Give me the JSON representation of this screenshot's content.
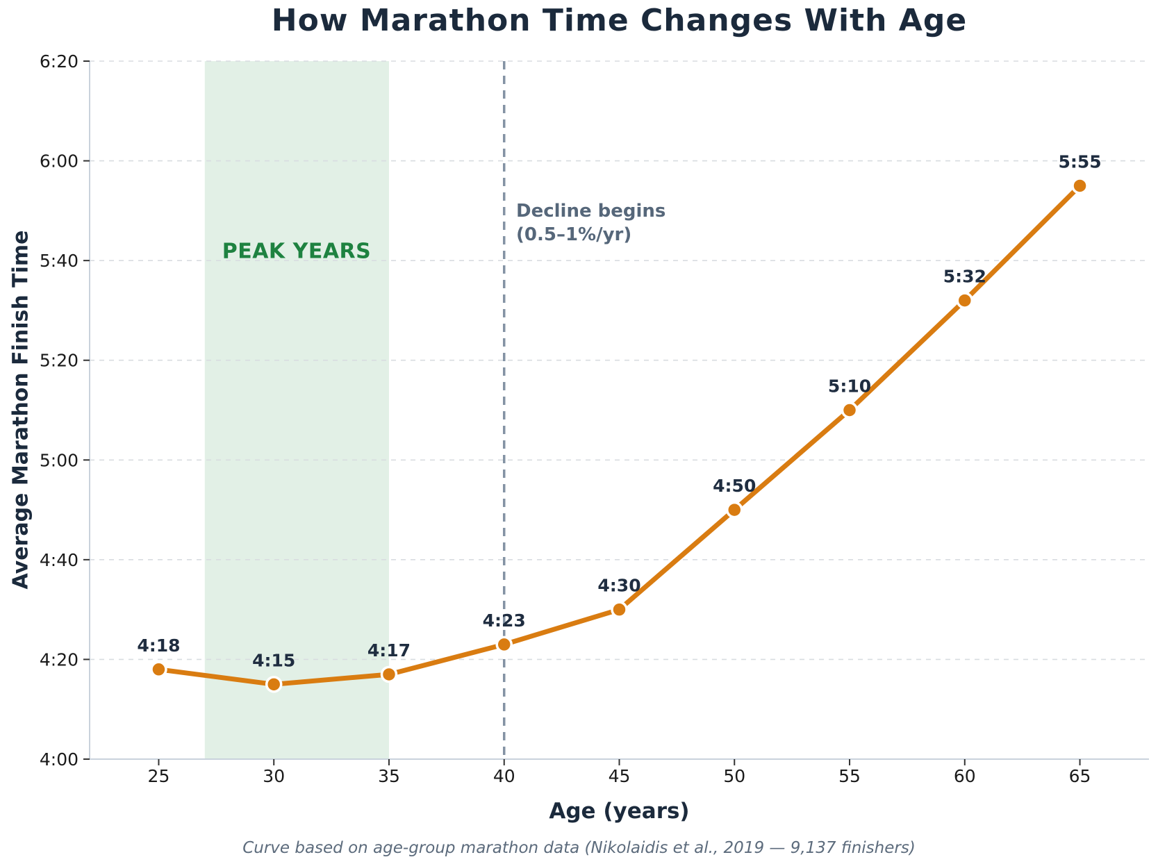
{
  "chart_data": {
    "type": "line",
    "title": "How Marathon Time Changes With Age",
    "xlabel": "Age (years)",
    "ylabel": "Average Marathon Finish Time",
    "caption": "Curve based on age-group marathon data (Nikolaidis et al., 2019 — 9,137 finishers)",
    "x": [
      25,
      30,
      35,
      40,
      45,
      50,
      55,
      60,
      65
    ],
    "point_labels": [
      "4:18",
      "4:15",
      "4:17",
      "4:23",
      "4:30",
      "4:50",
      "5:10",
      "5:32",
      "5:55"
    ],
    "y_minutes": [
      258,
      255,
      257,
      263,
      270,
      290,
      310,
      332,
      355
    ],
    "xlim": [
      22,
      68
    ],
    "ylim_minutes": [
      240,
      380
    ],
    "xticks": [
      25,
      30,
      35,
      40,
      45,
      50,
      55,
      60,
      65
    ],
    "yticks": [
      {
        "minutes": 240,
        "label": "4:00"
      },
      {
        "minutes": 260,
        "label": "4:20"
      },
      {
        "minutes": 280,
        "label": "4:40"
      },
      {
        "minutes": 300,
        "label": "5:00"
      },
      {
        "minutes": 320,
        "label": "5:20"
      },
      {
        "minutes": 340,
        "label": "5:40"
      },
      {
        "minutes": 360,
        "label": "6:00"
      },
      {
        "minutes": 380,
        "label": "6:20"
      }
    ],
    "grid": "horizontal-dashed",
    "legend": "none",
    "band": {
      "x_from": 27,
      "x_to": 35,
      "label": "PEAK YEARS"
    },
    "vline": {
      "x": 40,
      "style": "dashed",
      "label_lines": [
        "Decline begins",
        "(0.5–1%/yr)"
      ]
    },
    "colors": {
      "line": "#D97C11",
      "marker_fill": "#D97C11",
      "marker_edge": "#FFFFFF",
      "band_fill": "#E2F0E6",
      "band_label": "#1E8240",
      "vline": "#8493A4",
      "annotation": "#56677A",
      "title": "#1B2A3C",
      "axis_label": "#1B2A3C",
      "tick_label": "#1A1A1A",
      "tick_mark": "#333333",
      "grid": "#D8DCE0",
      "spine": "#C9D2DC",
      "point_label": "#1F2D40",
      "caption": "#5C6B7C"
    }
  }
}
